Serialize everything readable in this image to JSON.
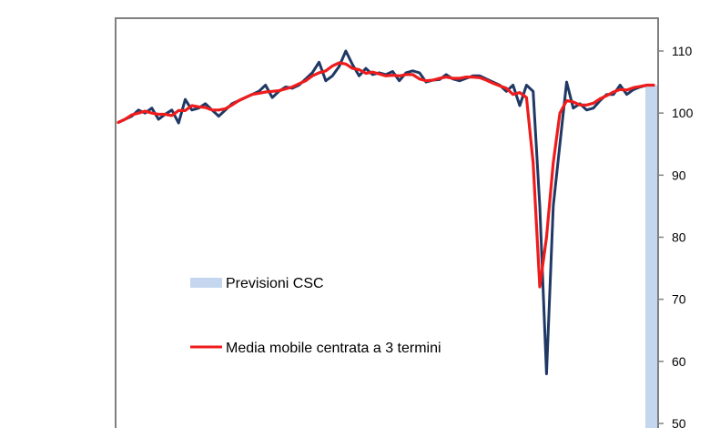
{
  "chart_data": {
    "type": "line",
    "y_axis_side": "right",
    "ylim": [
      50,
      113
    ],
    "yticks": [
      110,
      100,
      90,
      80,
      70,
      60,
      50
    ],
    "grid": false,
    "legend": {
      "placement": "center-left",
      "entries": [
        {
          "label": "Previsioni CSC",
          "swatch": "bar",
          "color": "#c5d7ee"
        },
        {
          "label": "Media mobile centrata a 3 termini",
          "swatch": "line",
          "color": "#ee1c1c"
        }
      ]
    },
    "forecast_shading": {
      "color": "#c5d7ee",
      "value": 104.5
    },
    "series": [
      {
        "color": "#1f3864",
        "values": [
          98.5,
          99,
          99.5,
          100.5,
          100,
          100.8,
          99,
          99.8,
          100.5,
          98.4,
          102.2,
          100.5,
          100.8,
          101.5,
          100.5,
          99.5,
          100.5,
          101.5,
          102,
          102.5,
          103,
          103.5,
          104.5,
          102.5,
          103.5,
          104.2,
          104,
          104.5,
          105.5,
          106.5,
          108.2,
          105.2,
          106,
          107.5,
          110,
          107.8,
          106,
          107.2,
          106.2,
          106.5,
          106.2,
          106.7,
          105.2,
          106.5,
          106.8,
          106.5,
          105,
          105.3,
          105.4,
          106.2,
          105.5,
          105.2,
          105.6,
          106,
          106,
          105.5,
          105,
          104.5,
          103.5,
          104.5,
          101.2,
          104.5,
          103.5,
          85,
          58,
          85,
          95,
          105,
          100.8,
          101.5,
          100.5,
          100.8,
          102,
          103,
          103,
          104.5,
          103,
          103.8,
          104.2,
          104.5,
          104.5
        ]
      },
      {
        "name": "Media mobile centrata a 3 termini",
        "color": "#ee1c1c",
        "values": [
          98.5,
          99,
          99.7,
          100,
          100.3,
          100,
          99.8,
          99.8,
          99.6,
          100.4,
          100.4,
          101.2,
          101,
          100.9,
          100.5,
          100.5,
          100.7,
          101.3,
          102,
          102.5,
          103,
          103.2,
          103.4,
          103.5,
          103.6,
          103.9,
          104.2,
          104.7,
          105.2,
          106,
          106.5,
          106.8,
          107.6,
          108.1,
          107.9,
          107.2,
          107,
          106.4,
          106.6,
          106.3,
          106,
          106.1,
          106,
          106.2,
          106.2,
          105.5,
          105.2,
          105.3,
          105.6,
          105.8,
          105.6,
          105.6,
          105.8,
          105.8,
          105.7,
          105.3,
          104.8,
          104.4,
          104,
          103,
          103.3,
          102.5,
          92,
          72,
          80,
          92,
          100,
          102,
          101.8,
          101.3,
          101.3,
          101.6,
          102.3,
          102.8,
          103.4,
          103.8,
          103.7,
          104.1,
          104.3,
          104.5,
          104.5
        ]
      }
    ]
  }
}
